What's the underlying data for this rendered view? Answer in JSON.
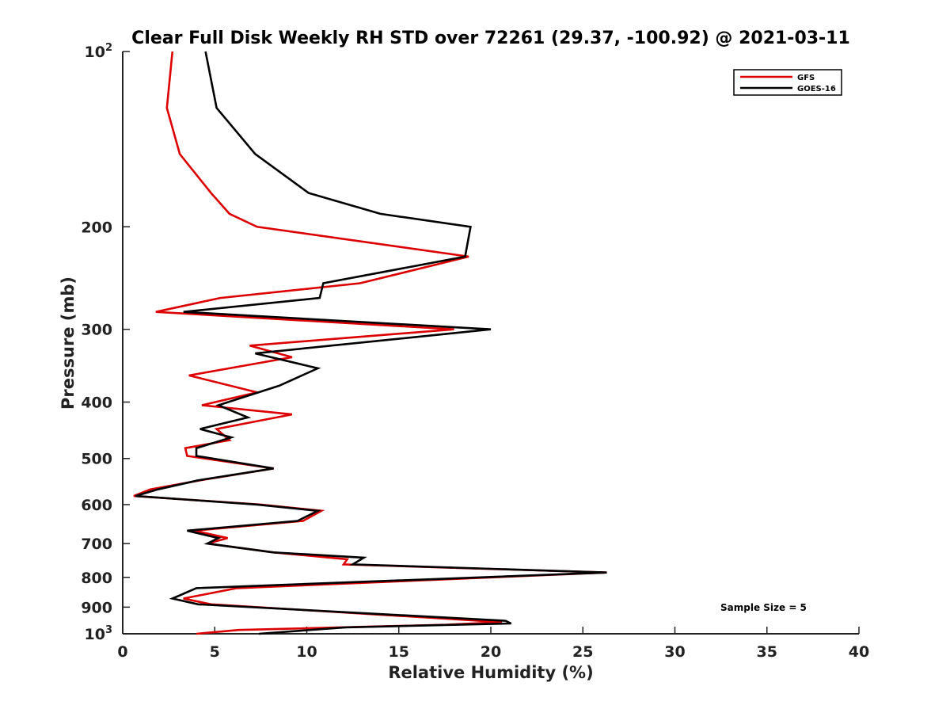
{
  "chart_data": {
    "type": "line",
    "title": "Clear Full Disk Weekly RH STD over 72261 (29.37, -100.92) @ 2021-03-11",
    "xlabel": "Relative Humidity (%)",
    "ylabel": "Pressure (mb)",
    "xlim": [
      0,
      40
    ],
    "ylim": [
      100,
      1000
    ],
    "y_scale": "log",
    "y_reversed": true,
    "xticks": [
      0,
      5,
      10,
      15,
      20,
      25,
      30,
      35,
      40
    ],
    "yticks": [
      {
        "value": 100,
        "label": "10",
        "exp": "2"
      },
      {
        "value": 200,
        "label": "200"
      },
      {
        "value": 300,
        "label": "300"
      },
      {
        "value": 400,
        "label": "400"
      },
      {
        "value": 500,
        "label": "500"
      },
      {
        "value": 600,
        "label": "600"
      },
      {
        "value": 700,
        "label": "700"
      },
      {
        "value": 800,
        "label": "800"
      },
      {
        "value": 900,
        "label": "900"
      },
      {
        "value": 1000,
        "label": "10",
        "exp": "3"
      }
    ],
    "grid": false,
    "legend_position": "top-right",
    "series": [
      {
        "name": "GFS",
        "color": "#dd0000",
        "points": [
          [
            2.7,
            100
          ],
          [
            2.4,
            125
          ],
          [
            3.1,
            150
          ],
          [
            4.8,
            175
          ],
          [
            5.8,
            190
          ],
          [
            7.3,
            200
          ],
          [
            18.8,
            225
          ],
          [
            12.9,
            250
          ],
          [
            5.3,
            265
          ],
          [
            1.8,
            280
          ],
          [
            18.0,
            300
          ],
          [
            6.9,
            320
          ],
          [
            9.2,
            335
          ],
          [
            3.6,
            360
          ],
          [
            7.3,
            385
          ],
          [
            4.3,
            405
          ],
          [
            9.2,
            420
          ],
          [
            5.1,
            445
          ],
          [
            5.8,
            465
          ],
          [
            3.4,
            480
          ],
          [
            3.5,
            495
          ],
          [
            8.2,
            520
          ],
          [
            4.2,
            545
          ],
          [
            1.5,
            565
          ],
          [
            0.6,
            580
          ],
          [
            7.5,
            600
          ],
          [
            10.8,
            615
          ],
          [
            9.8,
            640
          ],
          [
            3.9,
            665
          ],
          [
            5.7,
            685
          ],
          [
            4.6,
            700
          ],
          [
            8.2,
            725
          ],
          [
            12.2,
            745
          ],
          [
            12.0,
            760
          ],
          [
            26.3,
            785
          ],
          [
            6.2,
            835
          ],
          [
            3.3,
            870
          ],
          [
            4.8,
            890
          ],
          [
            20.6,
            955
          ],
          [
            17.6,
            965
          ],
          [
            6.3,
            985
          ],
          [
            4.0,
            1000
          ]
        ]
      },
      {
        "name": "GOES-16",
        "color": "#000000",
        "points": [
          [
            4.5,
            100
          ],
          [
            5.1,
            125
          ],
          [
            7.2,
            150
          ],
          [
            10.1,
            175
          ],
          [
            14.0,
            190
          ],
          [
            18.9,
            200
          ],
          [
            18.6,
            225
          ],
          [
            10.9,
            250
          ],
          [
            10.7,
            265
          ],
          [
            3.3,
            280
          ],
          [
            20.0,
            300
          ],
          [
            7.2,
            330
          ],
          [
            10.6,
            350
          ],
          [
            8.5,
            375
          ],
          [
            5.2,
            405
          ],
          [
            6.8,
            425
          ],
          [
            4.2,
            445
          ],
          [
            5.9,
            460
          ],
          [
            4.0,
            480
          ],
          [
            4.0,
            495
          ],
          [
            8.2,
            520
          ],
          [
            4.1,
            545
          ],
          [
            1.9,
            565
          ],
          [
            0.7,
            580
          ],
          [
            7.3,
            600
          ],
          [
            10.6,
            615
          ],
          [
            9.5,
            640
          ],
          [
            3.5,
            665
          ],
          [
            5.2,
            685
          ],
          [
            4.6,
            700
          ],
          [
            8.2,
            725
          ],
          [
            13.1,
            740
          ],
          [
            12.5,
            760
          ],
          [
            26.3,
            785
          ],
          [
            4.0,
            835
          ],
          [
            2.7,
            870
          ],
          [
            4.1,
            890
          ],
          [
            20.8,
            950
          ],
          [
            21.1,
            960
          ],
          [
            12.1,
            975
          ],
          [
            7.4,
            1000
          ]
        ]
      }
    ],
    "annotations": [
      "Sample Size = 5"
    ]
  }
}
